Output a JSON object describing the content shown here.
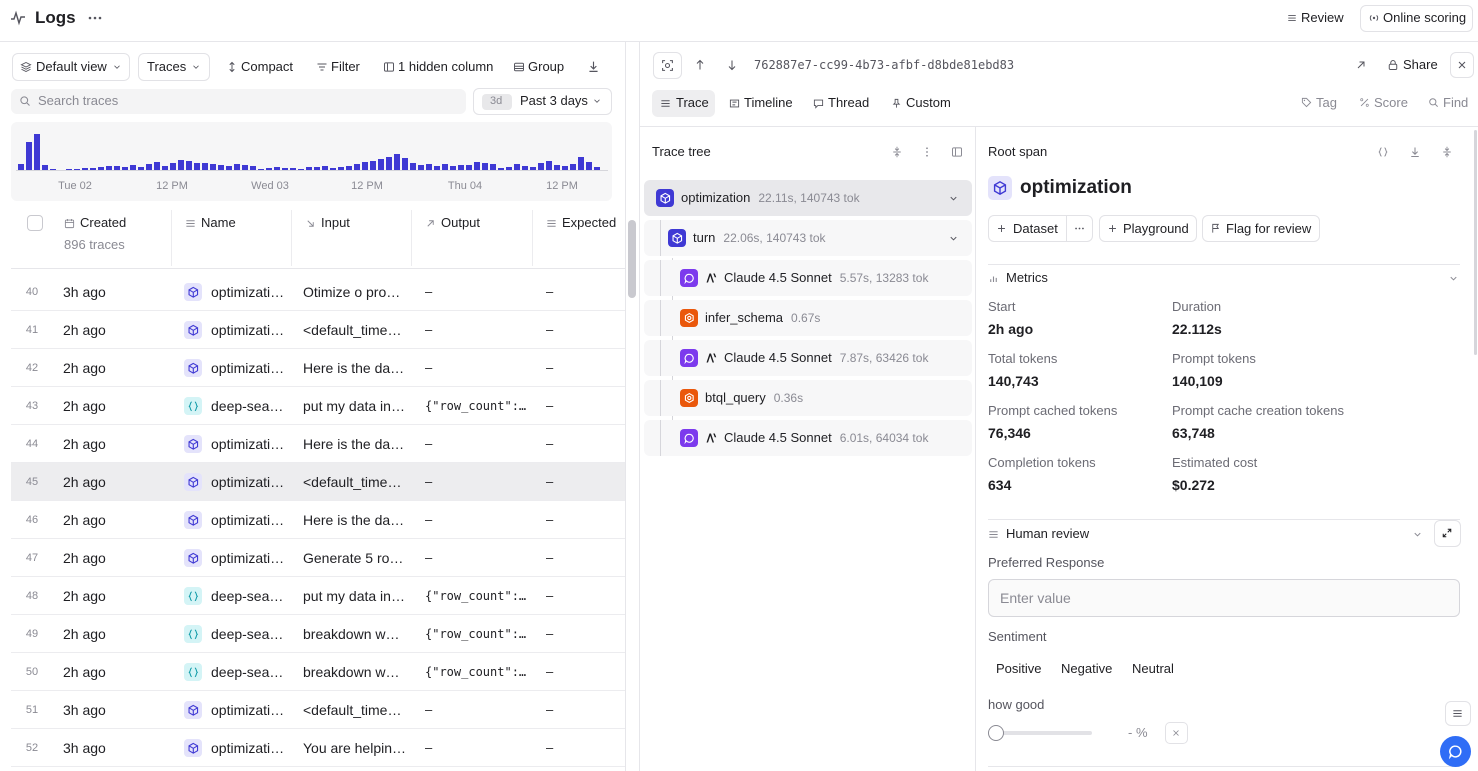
{
  "header": {
    "title": "Logs",
    "actions": [
      "Review",
      "Online scoring"
    ]
  },
  "toolbar": {
    "view": "Default view",
    "mode": "Traces",
    "items": [
      "Compact",
      "Filter",
      "1 hidden column",
      "Group"
    ],
    "search_placeholder": "Search traces",
    "range_badge": "3d",
    "range": "Past 3 days"
  },
  "histogram": {
    "values": [
      6,
      27,
      35,
      5,
      1,
      0,
      1,
      1,
      2,
      2,
      3,
      4,
      4,
      3,
      5,
      3,
      6,
      8,
      4,
      7,
      10,
      9,
      7,
      7,
      6,
      5,
      4,
      6,
      5,
      4,
      1,
      2,
      3,
      2,
      2,
      1,
      3,
      3,
      4,
      2,
      3,
      4,
      6,
      8,
      9,
      11,
      13,
      16,
      12,
      7,
      5,
      6,
      4,
      6,
      4,
      5,
      5,
      8,
      7,
      6,
      2,
      3,
      6,
      4,
      3,
      7,
      9,
      5,
      4,
      6,
      13,
      8,
      3
    ],
    "x_labels": [
      "Tue 02",
      "12 PM",
      "Wed 03",
      "12 PM",
      "Thu 04",
      "12 PM"
    ]
  },
  "table": {
    "columns": [
      "Created",
      "Name",
      "Input",
      "Output",
      "Expected"
    ],
    "count": "896 traces",
    "rows": [
      [
        "40",
        "3h ago",
        "optimizati…",
        "Otimize o pro…",
        "–",
        "–"
      ],
      [
        "41",
        "2h ago",
        "optimizati…",
        "<default_time…",
        "–",
        "–"
      ],
      [
        "42",
        "2h ago",
        "optimizati…",
        "Here is the da…",
        "–",
        "–"
      ],
      [
        "43",
        "2h ago",
        "deep-sea…",
        "put my data in…",
        "{\"row_count\":…",
        "–"
      ],
      [
        "44",
        "2h ago",
        "optimizati…",
        "Here is the da…",
        "–",
        "–"
      ],
      [
        "45",
        "2h ago",
        "optimizati…",
        "<default_time…",
        "–",
        "–"
      ],
      [
        "46",
        "2h ago",
        "optimizati…",
        "Here is the da…",
        "–",
        "–"
      ],
      [
        "47",
        "2h ago",
        "optimizati…",
        "Generate 5 ro…",
        "–",
        "–"
      ],
      [
        "48",
        "2h ago",
        "deep-sea…",
        "put my data in…",
        "{\"row_count\":…",
        "–"
      ],
      [
        "49",
        "2h ago",
        "deep-sea…",
        "breakdown w…",
        "{\"row_count\":…",
        "–"
      ],
      [
        "50",
        "2h ago",
        "deep-sea…",
        "breakdown w…",
        "{\"row_count\":…",
        "–"
      ],
      [
        "51",
        "3h ago",
        "optimizati…",
        "<default_time…",
        "–",
        "–"
      ],
      [
        "52",
        "3h ago",
        "optimizati…",
        "You are helpin…",
        "–",
        "–"
      ]
    ]
  },
  "trace": {
    "id": "762887e7-cc99-4b73-afbf-d8bde81ebd83",
    "share": "Share",
    "tabs": [
      "Trace",
      "Timeline",
      "Thread",
      "Custom"
    ],
    "tools": [
      "Tag",
      "Score",
      "Find"
    ]
  },
  "tree": {
    "title": "Trace tree",
    "nodes": [
      {
        "name": "optimization",
        "meta": "22.11s, 140743 tok"
      },
      {
        "name": "turn",
        "meta": "22.06s, 140743 tok"
      },
      {
        "name": "Claude 4.5 Sonnet",
        "meta": "5.57s, 13283 tok"
      },
      {
        "name": "infer_schema",
        "meta": "0.67s"
      },
      {
        "name": "Claude 4.5 Sonnet",
        "meta": "7.87s, 63426 tok"
      },
      {
        "name": "btql_query",
        "meta": "0.36s"
      },
      {
        "name": "Claude 4.5 Sonnet",
        "meta": "6.01s, 64034 tok"
      }
    ]
  },
  "span": {
    "header": "Root span",
    "title": "optimization",
    "actions": [
      "Dataset",
      "Playground",
      "Flag for review"
    ],
    "metrics_title": "Metrics",
    "metrics": [
      {
        "label": "Start",
        "value": "2h ago"
      },
      {
        "label": "Duration",
        "value": "22.112s"
      },
      {
        "label": "Total tokens",
        "value": "140,743"
      },
      {
        "label": "Prompt tokens",
        "value": "140,109"
      },
      {
        "label": "Prompt cached tokens",
        "value": "76,346"
      },
      {
        "label": "Prompt cache creation tokens",
        "value": "63,748"
      },
      {
        "label": "Completion tokens",
        "value": "634"
      },
      {
        "label": "Estimated cost",
        "value": "$0.272"
      }
    ],
    "review_title": "Human review",
    "preferred_label": "Preferred Response",
    "placeholder": "Enter value",
    "sentiment_label": "Sentiment",
    "sentiment_options": [
      "Positive",
      "Negative",
      "Neutral"
    ],
    "score_label": "how good",
    "score_value": "- %"
  }
}
